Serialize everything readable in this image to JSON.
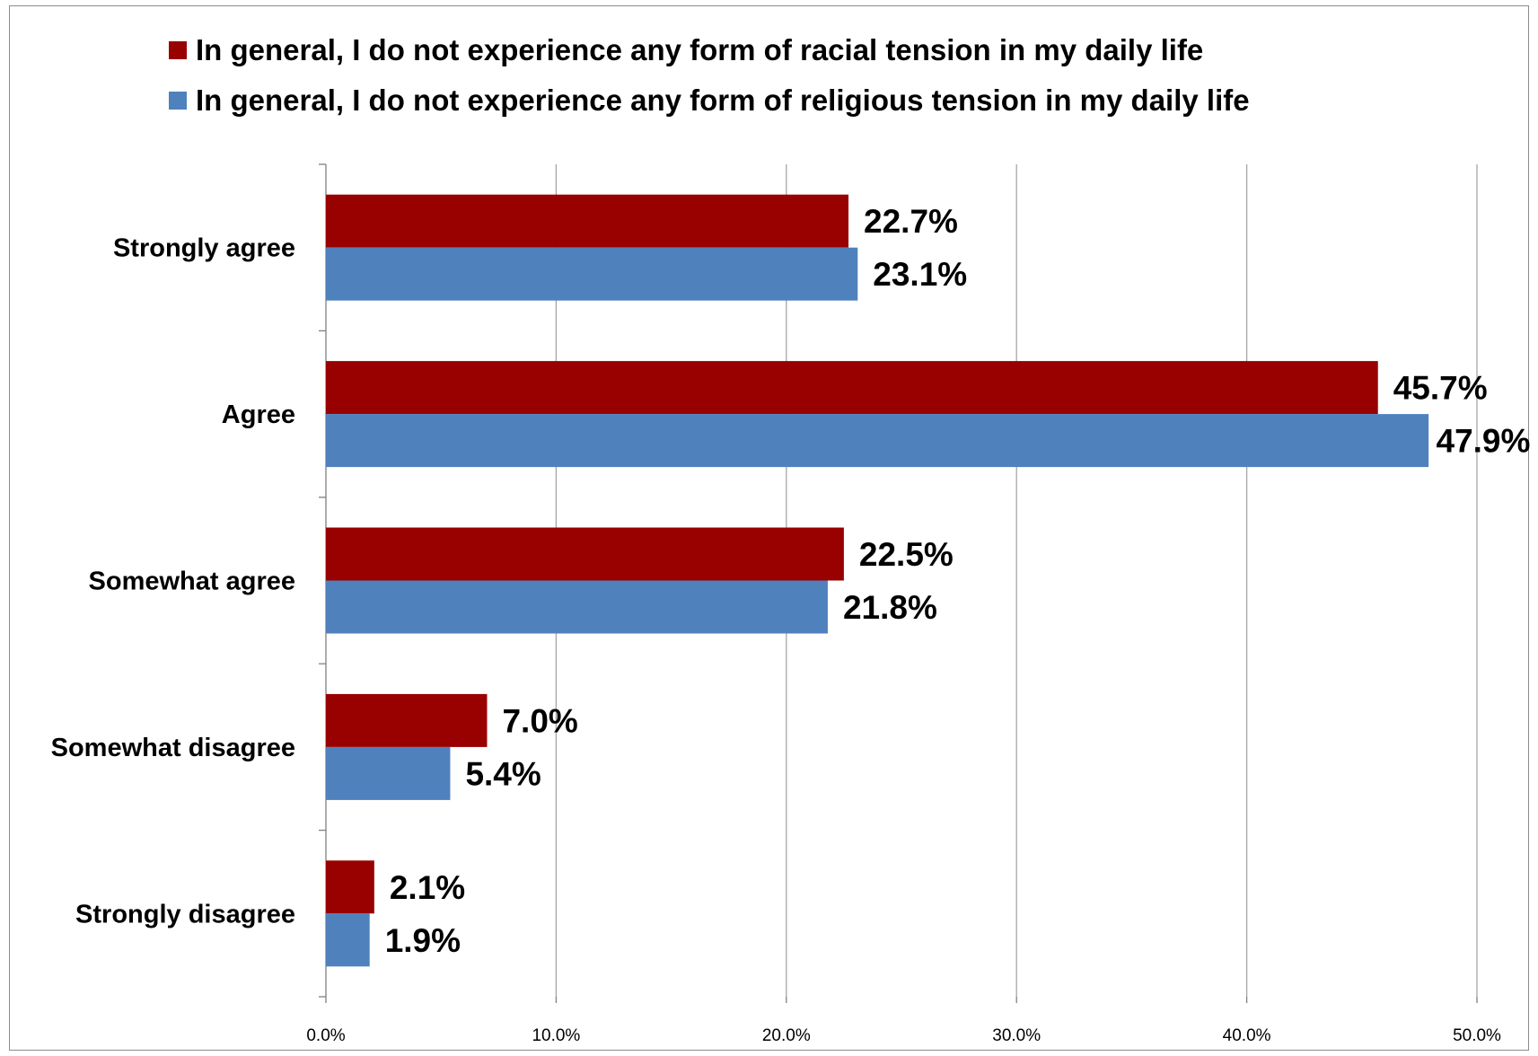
{
  "chart_data": {
    "type": "bar",
    "orientation": "horizontal",
    "categories": [
      "Strongly agree",
      "Agree",
      "Somewhat agree",
      "Somewhat disagree",
      "Strongly disagree"
    ],
    "series": [
      {
        "name": "In general, I do not experience any form of racial tension in my daily life",
        "color": "#990000",
        "values": [
          22.7,
          45.7,
          22.5,
          7.0,
          2.1
        ],
        "data_labels": [
          "22.7%",
          "45.7%",
          "22.5%",
          "7.0%",
          "2.1%"
        ]
      },
      {
        "name": "In general, I do not experience any form of religious tension in my daily life",
        "color": "#4f81bd",
        "values": [
          23.1,
          47.9,
          21.8,
          5.4,
          1.9
        ],
        "data_labels": [
          "23.1%",
          "47.9%",
          "21.8%",
          "5.4%",
          "1.9%"
        ]
      }
    ],
    "xlim": [
      0,
      50
    ],
    "x_ticks": [
      0,
      10,
      20,
      30,
      40,
      50
    ],
    "x_tick_labels": [
      "0.0%",
      "10.0%",
      "20.0%",
      "30.0%",
      "40.0%",
      "50.0%"
    ],
    "grid": "vertical",
    "legend_position": "top",
    "colors": {
      "gridline": "#a6a6a6",
      "axis": "#808080",
      "frame": "#8c8c8c"
    }
  }
}
